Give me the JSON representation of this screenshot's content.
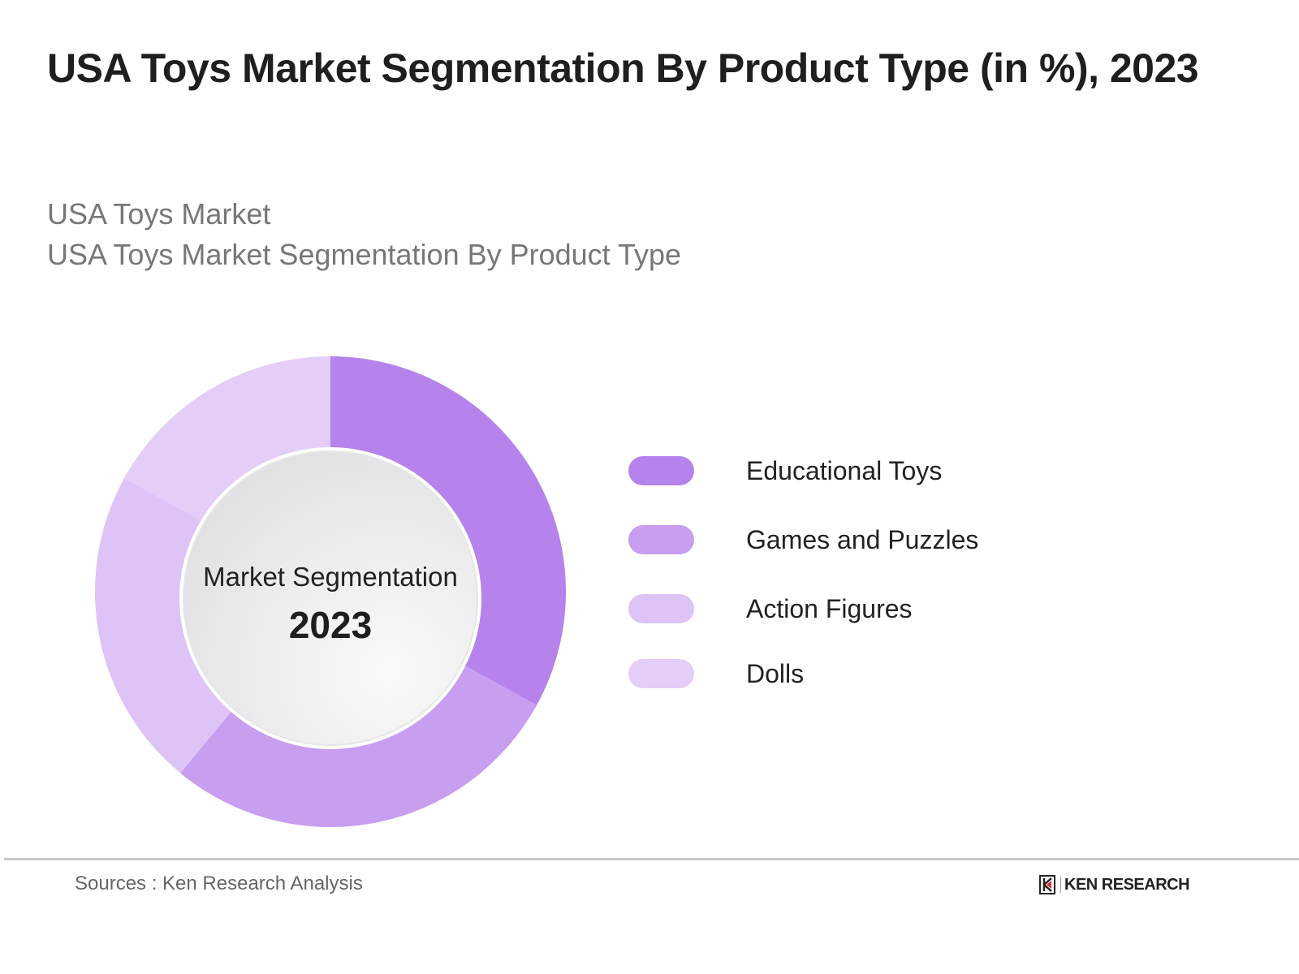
{
  "chart_data": {
    "type": "pie",
    "variant": "donut",
    "title": "USA Toys Market Segmentation By Product Type (in %), 2023",
    "subtitle_lines": [
      "USA Toys Market",
      "USA Toys Market Segmentation By Product Type"
    ],
    "center_label": "Market Segmentation",
    "center_value": "2023",
    "categories": [
      "Educational Toys",
      "Games and Puzzles",
      "Action Figures",
      "Dolls"
    ],
    "values": [
      33,
      28,
      22,
      17
    ],
    "colors": [
      "#b583eb",
      "#c79ef0",
      "#dec3f7",
      "#e4cdf7"
    ],
    "legend_position": "right"
  },
  "footer": {
    "source": "Sources : Ken Research Analysis",
    "logo_text": "KEN RESEARCH"
  }
}
